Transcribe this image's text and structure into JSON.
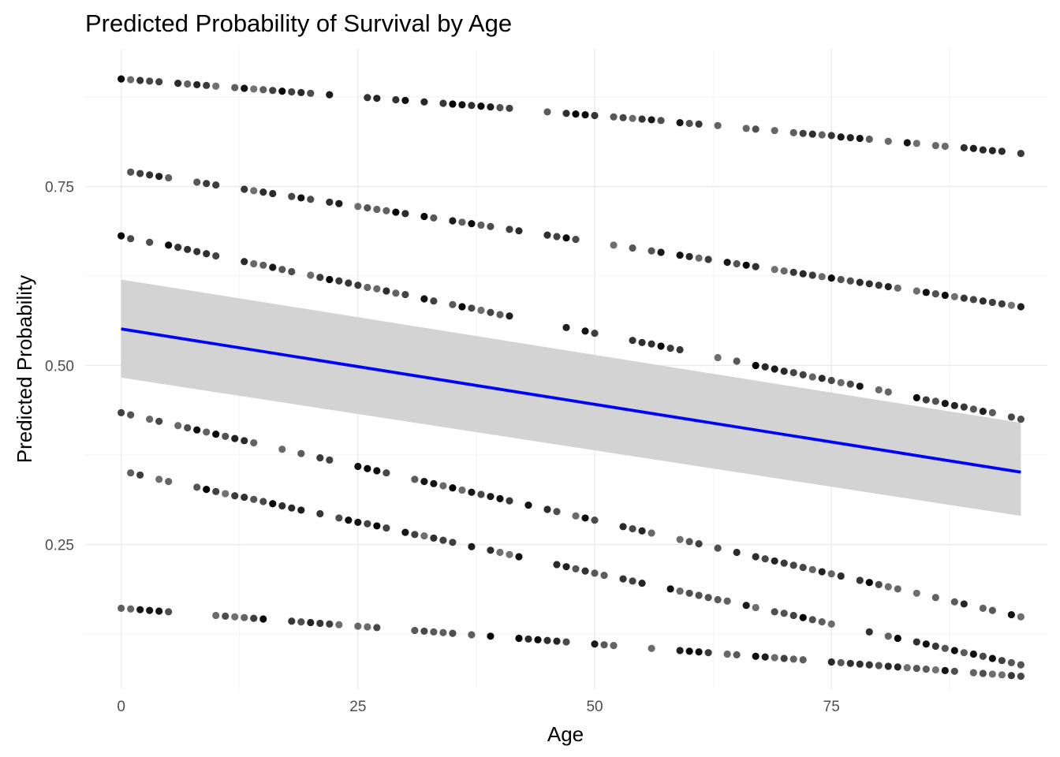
{
  "chart_data": {
    "type": "scatter",
    "title": "Predicted Probability of Survival by Age",
    "xlabel": "Age",
    "ylabel": "Predicted Probability",
    "xlim": [
      -3.8,
      97.8
    ],
    "ylim": [
      0.048,
      0.942
    ],
    "x_ticks": [
      0,
      25,
      50,
      75
    ],
    "x_tick_labels": [
      "0",
      "25",
      "50",
      "75"
    ],
    "y_ticks": [
      0.25,
      0.5,
      0.75
    ],
    "y_tick_labels": [
      "0.25",
      "0.50",
      "0.75"
    ],
    "x_minor_ticks": [
      12.5,
      37.5,
      62.5,
      87.5
    ],
    "y_minor_ticks": [
      0.125,
      0.375,
      0.625,
      0.875
    ],
    "grid": true,
    "point_color": "#000000",
    "point_opacity_range": [
      0.55,
      1.0
    ],
    "series": [
      {
        "x": [
          0,
          1,
          2,
          3,
          4,
          6,
          7,
          8,
          9,
          10,
          12,
          13,
          14,
          15,
          16,
          17,
          18,
          19,
          20,
          22,
          26,
          27,
          29,
          30,
          32,
          34,
          35,
          36,
          37,
          38,
          39,
          40,
          41,
          45,
          47,
          48,
          49,
          50,
          52,
          53,
          54,
          55,
          56,
          57,
          59,
          60,
          61,
          63,
          66,
          67,
          69,
          71,
          72,
          73,
          74,
          75,
          76,
          77,
          78,
          79,
          81,
          83,
          84,
          86,
          87,
          89,
          90,
          91,
          92,
          93,
          95
        ],
        "y": [
          0.9,
          0.899,
          0.898,
          0.897,
          0.896,
          0.894,
          0.893,
          0.892,
          0.891,
          0.89,
          0.888,
          0.887,
          0.886,
          0.885,
          0.884,
          0.883,
          0.882,
          0.881,
          0.88,
          0.878,
          0.874,
          0.873,
          0.871,
          0.87,
          0.868,
          0.866,
          0.865,
          0.864,
          0.863,
          0.862,
          0.861,
          0.86,
          0.859,
          0.854,
          0.852,
          0.851,
          0.85,
          0.849,
          0.847,
          0.846,
          0.845,
          0.844,
          0.843,
          0.842,
          0.839,
          0.838,
          0.837,
          0.835,
          0.831,
          0.83,
          0.828,
          0.825,
          0.824,
          0.823,
          0.822,
          0.821,
          0.819,
          0.818,
          0.817,
          0.816,
          0.813,
          0.811,
          0.81,
          0.807,
          0.806,
          0.804,
          0.803,
          0.801,
          0.8,
          0.799,
          0.796
        ]
      },
      {
        "x": [
          1,
          2,
          3,
          4,
          5,
          8,
          9,
          10,
          13,
          14,
          15,
          16,
          18,
          19,
          20,
          22,
          23,
          25,
          26,
          27,
          28,
          29,
          30,
          32,
          33,
          35,
          36,
          37,
          38,
          39,
          41,
          42,
          45,
          46,
          47,
          48,
          52,
          54,
          56,
          57,
          59,
          60,
          61,
          62,
          64,
          65,
          66,
          67,
          69,
          70,
          71,
          72,
          73,
          74,
          75,
          76,
          77,
          78,
          79,
          80,
          81,
          82,
          84,
          85,
          86,
          87,
          88,
          89,
          90,
          91,
          92,
          93,
          94,
          95
        ],
        "y": [
          0.77,
          0.768,
          0.766,
          0.764,
          0.762,
          0.756,
          0.754,
          0.752,
          0.746,
          0.744,
          0.742,
          0.74,
          0.736,
          0.734,
          0.732,
          0.728,
          0.726,
          0.722,
          0.72,
          0.718,
          0.716,
          0.714,
          0.712,
          0.708,
          0.706,
          0.702,
          0.7,
          0.698,
          0.696,
          0.694,
          0.69,
          0.688,
          0.682,
          0.68,
          0.678,
          0.676,
          0.668,
          0.664,
          0.66,
          0.658,
          0.654,
          0.652,
          0.65,
          0.648,
          0.644,
          0.642,
          0.64,
          0.638,
          0.634,
          0.632,
          0.63,
          0.628,
          0.626,
          0.624,
          0.622,
          0.62,
          0.618,
          0.616,
          0.614,
          0.612,
          0.61,
          0.608,
          0.604,
          0.602,
          0.6,
          0.598,
          0.596,
          0.594,
          0.592,
          0.59,
          0.588,
          0.586,
          0.584,
          0.582
        ]
      },
      {
        "x": [
          0,
          1,
          3,
          5,
          6,
          7,
          8,
          9,
          10,
          13,
          14,
          15,
          16,
          17,
          18,
          20,
          21,
          22,
          23,
          24,
          25,
          26,
          27,
          28,
          29,
          30,
          32,
          33,
          35,
          36,
          37,
          38,
          39,
          40,
          41,
          47,
          49,
          50,
          54,
          55,
          56,
          57,
          58,
          59,
          63,
          65,
          67,
          68,
          69,
          70,
          71,
          72,
          73,
          74,
          75,
          76,
          77,
          78,
          80,
          81,
          84,
          85,
          86,
          87,
          88,
          89,
          90,
          91,
          92,
          94,
          95
        ],
        "y": [
          0.681,
          0.677,
          0.672,
          0.668,
          0.665,
          0.662,
          0.659,
          0.656,
          0.653,
          0.645,
          0.642,
          0.64,
          0.637,
          0.634,
          0.631,
          0.626,
          0.623,
          0.62,
          0.618,
          0.615,
          0.612,
          0.609,
          0.607,
          0.604,
          0.601,
          0.599,
          0.593,
          0.59,
          0.585,
          0.582,
          0.58,
          0.577,
          0.574,
          0.571,
          0.569,
          0.553,
          0.548,
          0.545,
          0.535,
          0.532,
          0.53,
          0.527,
          0.524,
          0.522,
          0.511,
          0.506,
          0.5,
          0.498,
          0.495,
          0.492,
          0.49,
          0.487,
          0.484,
          0.482,
          0.479,
          0.476,
          0.474,
          0.471,
          0.466,
          0.463,
          0.455,
          0.452,
          0.45,
          0.447,
          0.444,
          0.442,
          0.439,
          0.436,
          0.434,
          0.428,
          0.425
        ]
      },
      {
        "x": [
          0,
          1,
          3,
          4,
          6,
          7,
          8,
          9,
          10,
          11,
          12,
          13,
          14,
          17,
          19,
          21,
          22,
          25,
          26,
          27,
          28,
          31,
          32,
          33,
          34,
          35,
          36,
          37,
          38,
          39,
          40,
          41,
          43,
          45,
          46,
          48,
          49,
          50,
          53,
          54,
          55,
          56,
          59,
          60,
          61,
          63,
          65,
          67,
          68,
          69,
          70,
          71,
          72,
          73,
          74,
          75,
          76,
          78,
          79,
          80,
          81,
          82,
          84,
          86,
          88,
          89,
          91,
          92,
          94,
          95
        ],
        "y": [
          0.434,
          0.431,
          0.425,
          0.422,
          0.416,
          0.413,
          0.41,
          0.407,
          0.404,
          0.401,
          0.398,
          0.395,
          0.392,
          0.383,
          0.377,
          0.371,
          0.368,
          0.359,
          0.356,
          0.353,
          0.35,
          0.341,
          0.338,
          0.335,
          0.332,
          0.329,
          0.326,
          0.323,
          0.32,
          0.317,
          0.314,
          0.311,
          0.305,
          0.299,
          0.296,
          0.29,
          0.287,
          0.284,
          0.275,
          0.272,
          0.269,
          0.266,
          0.257,
          0.254,
          0.251,
          0.245,
          0.239,
          0.233,
          0.23,
          0.227,
          0.224,
          0.221,
          0.218,
          0.215,
          0.212,
          0.209,
          0.206,
          0.2,
          0.197,
          0.194,
          0.191,
          0.188,
          0.182,
          0.176,
          0.17,
          0.167,
          0.161,
          0.158,
          0.152,
          0.149
        ]
      },
      {
        "x": [
          1,
          2,
          4,
          5,
          8,
          9,
          10,
          11,
          12,
          13,
          14,
          15,
          16,
          17,
          18,
          19,
          21,
          23,
          24,
          25,
          26,
          27,
          28,
          30,
          31,
          32,
          33,
          34,
          35,
          37,
          39,
          40,
          41,
          42,
          46,
          47,
          48,
          49,
          50,
          51,
          53,
          54,
          55,
          58,
          59,
          60,
          61,
          62,
          63,
          64,
          66,
          67,
          69,
          70,
          71,
          72,
          73,
          74,
          75,
          79,
          81,
          82,
          84,
          85,
          86,
          87,
          88,
          89,
          90,
          91,
          92,
          93,
          94,
          95
        ],
        "y": [
          0.35,
          0.347,
          0.341,
          0.338,
          0.33,
          0.327,
          0.324,
          0.321,
          0.318,
          0.316,
          0.313,
          0.31,
          0.307,
          0.304,
          0.301,
          0.298,
          0.293,
          0.287,
          0.284,
          0.281,
          0.279,
          0.276,
          0.273,
          0.267,
          0.264,
          0.262,
          0.259,
          0.256,
          0.253,
          0.247,
          0.242,
          0.239,
          0.236,
          0.233,
          0.222,
          0.219,
          0.216,
          0.213,
          0.21,
          0.207,
          0.202,
          0.199,
          0.196,
          0.188,
          0.185,
          0.182,
          0.179,
          0.176,
          0.173,
          0.171,
          0.165,
          0.162,
          0.156,
          0.154,
          0.151,
          0.148,
          0.145,
          0.142,
          0.139,
          0.128,
          0.122,
          0.119,
          0.114,
          0.111,
          0.108,
          0.105,
          0.102,
          0.099,
          0.097,
          0.094,
          0.091,
          0.088,
          0.085,
          0.082
        ]
      },
      {
        "x": [
          0,
          1,
          2,
          3,
          4,
          5,
          10,
          11,
          12,
          13,
          14,
          15,
          18,
          19,
          20,
          21,
          22,
          23,
          25,
          26,
          27,
          31,
          32,
          33,
          34,
          35,
          37,
          39,
          42,
          43,
          44,
          45,
          46,
          47,
          50,
          51,
          52,
          56,
          59,
          60,
          61,
          62,
          64,
          65,
          67,
          68,
          69,
          70,
          71,
          72,
          75,
          76,
          77,
          78,
          79,
          80,
          81,
          82,
          83,
          84,
          85,
          86,
          87,
          88,
          90,
          91,
          92,
          93,
          94,
          95
        ],
        "y": [
          0.161,
          0.16,
          0.159,
          0.158,
          0.157,
          0.156,
          0.151,
          0.15,
          0.149,
          0.148,
          0.147,
          0.146,
          0.143,
          0.142,
          0.141,
          0.14,
          0.139,
          0.138,
          0.136,
          0.135,
          0.134,
          0.13,
          0.129,
          0.128,
          0.127,
          0.126,
          0.124,
          0.122,
          0.119,
          0.118,
          0.117,
          0.116,
          0.115,
          0.114,
          0.111,
          0.11,
          0.109,
          0.105,
          0.102,
          0.101,
          0.1,
          0.099,
          0.097,
          0.096,
          0.094,
          0.093,
          0.092,
          0.091,
          0.09,
          0.089,
          0.086,
          0.085,
          0.084,
          0.083,
          0.082,
          0.081,
          0.08,
          0.079,
          0.078,
          0.077,
          0.076,
          0.075,
          0.074,
          0.073,
          0.071,
          0.07,
          0.069,
          0.068,
          0.067,
          0.066
        ]
      }
    ],
    "smooth": {
      "method": "lm",
      "line_color": "#0000ff",
      "band_color": "#d3d3d3",
      "x": [
        0,
        95
      ],
      "y": [
        0.551,
        0.351
      ],
      "ci_lower": [
        0.483,
        0.29
      ],
      "ci_upper": [
        0.62,
        0.42
      ]
    }
  }
}
